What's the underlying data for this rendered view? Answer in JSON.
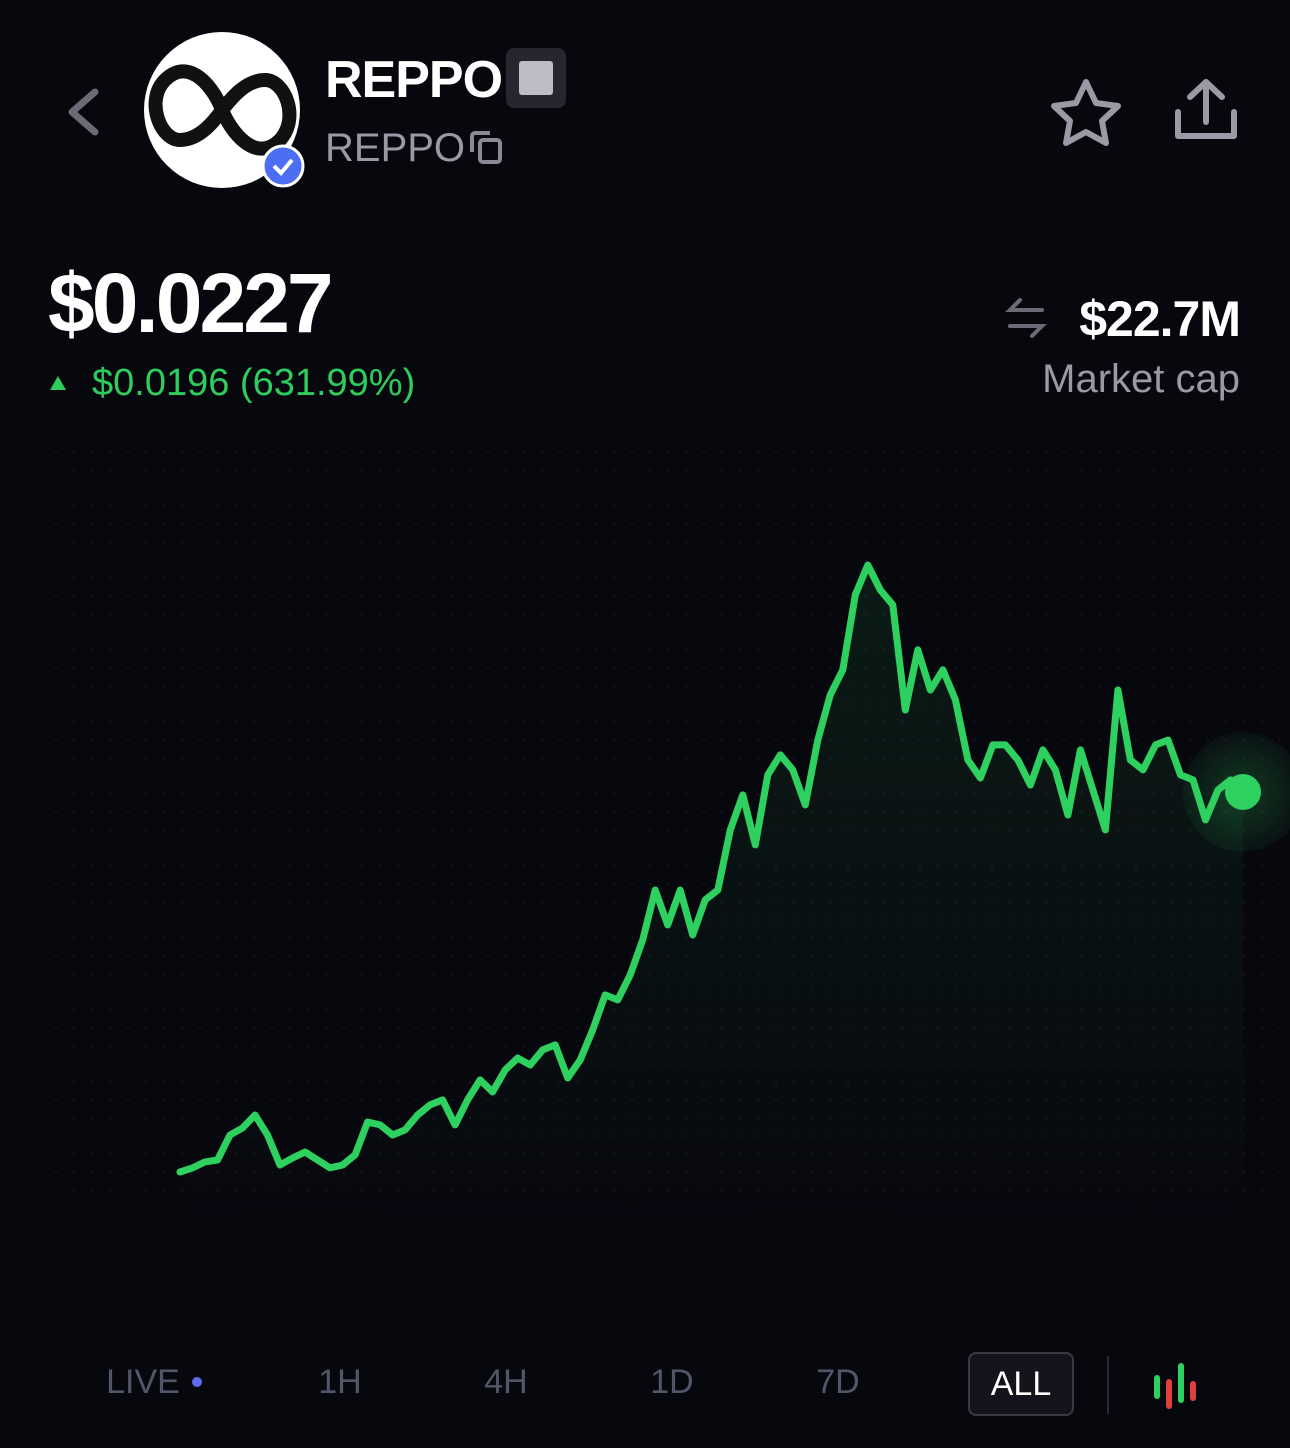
{
  "header": {
    "name": "REPPO",
    "ticker": "REPPO"
  },
  "price": {
    "value": "$0.0227",
    "change": "$0.0196 (631.99%)"
  },
  "market_cap": {
    "value": "$22.7M",
    "label": "Market cap"
  },
  "chart_data": {
    "type": "line",
    "color": "#2ed160",
    "values": [
      0.00309,
      0.0033,
      0.00361,
      0.00371,
      0.005,
      0.00536,
      0.00603,
      0.005,
      0.00345,
      0.00381,
      0.00412,
      0.00371,
      0.0033,
      0.00345,
      0.00397,
      0.00567,
      0.00552,
      0.005,
      0.00526,
      0.00603,
      0.00655,
      0.00681,
      0.00552,
      0.00681,
      0.00784,
      0.00722,
      0.00836,
      0.00897,
      0.00861,
      0.00939,
      0.00965,
      0.00794,
      0.00887,
      0.01042,
      0.01223,
      0.01197,
      0.01326,
      0.01506,
      0.01764,
      0.01584,
      0.01764,
      0.01532,
      0.01713,
      0.01764,
      0.02074,
      0.02255,
      0.01997,
      0.02358,
      0.02461,
      0.02384,
      0.02203,
      0.02538,
      0.02771,
      0.029,
      0.03287,
      0.03441,
      0.03312,
      0.03235,
      0.02693,
      0.03003,
      0.02796,
      0.029,
      0.02745,
      0.02435,
      0.02342,
      0.02513,
      0.02513,
      0.02435,
      0.02306,
      0.02487,
      0.02384,
      0.02151,
      0.02487,
      0.0228,
      0.02074,
      0.02796,
      0.02435,
      0.02384,
      0.02513,
      0.02538,
      0.02358,
      0.02332,
      0.02126,
      0.0228,
      0.02332,
      0.0227
    ]
  },
  "tabs": [
    "LIVE",
    "1H",
    "4H",
    "1D",
    "7D",
    "ALL"
  ],
  "active_tab": 5
}
